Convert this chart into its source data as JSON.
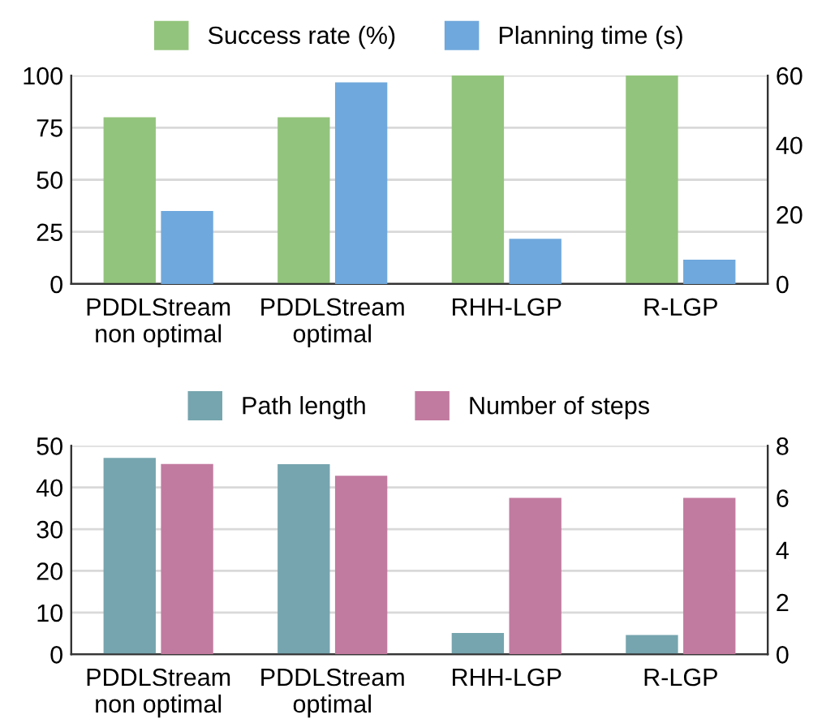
{
  "chart_data": [
    {
      "type": "bar",
      "categories": [
        "PDDLStream\nnon optimal",
        "PDDLStream\noptimal",
        "RHH-LGP",
        "R-LGP"
      ],
      "series": [
        {
          "name": "Success rate (%)",
          "color": "#93c47d",
          "values": [
            80,
            80,
            100,
            100
          ]
        },
        {
          "name": "Planning time (s)",
          "color": "#6fa8dc",
          "values": [
            21,
            58,
            13,
            7
          ],
          "axis": "y2"
        }
      ],
      "ylim": [
        0,
        100
      ],
      "yticks": [
        0,
        25,
        50,
        75,
        100
      ],
      "y2lim": [
        0,
        60
      ],
      "y2ticks": [
        0,
        20,
        40,
        60
      ],
      "grid": "y",
      "legend": "top"
    },
    {
      "type": "bar",
      "categories": [
        "PDDLStream\nnon optimal",
        "PDDLStream\noptimal",
        "RHH-LGP",
        "R-LGP"
      ],
      "series": [
        {
          "name": "Path length",
          "color": "#76a5af",
          "values": [
            47.1,
            45.6,
            5.1,
            4.6
          ]
        },
        {
          "name": "Number of steps",
          "color": "#c27ba0",
          "values": [
            7.3,
            6.85,
            6,
            6
          ],
          "axis": "y2"
        }
      ],
      "ylim": [
        0,
        50
      ],
      "yticks": [
        0,
        10,
        20,
        30,
        40,
        50
      ],
      "y2lim": [
        0,
        8
      ],
      "y2ticks": [
        0,
        2,
        4,
        6,
        8
      ],
      "grid": "y",
      "legend": "top"
    }
  ]
}
